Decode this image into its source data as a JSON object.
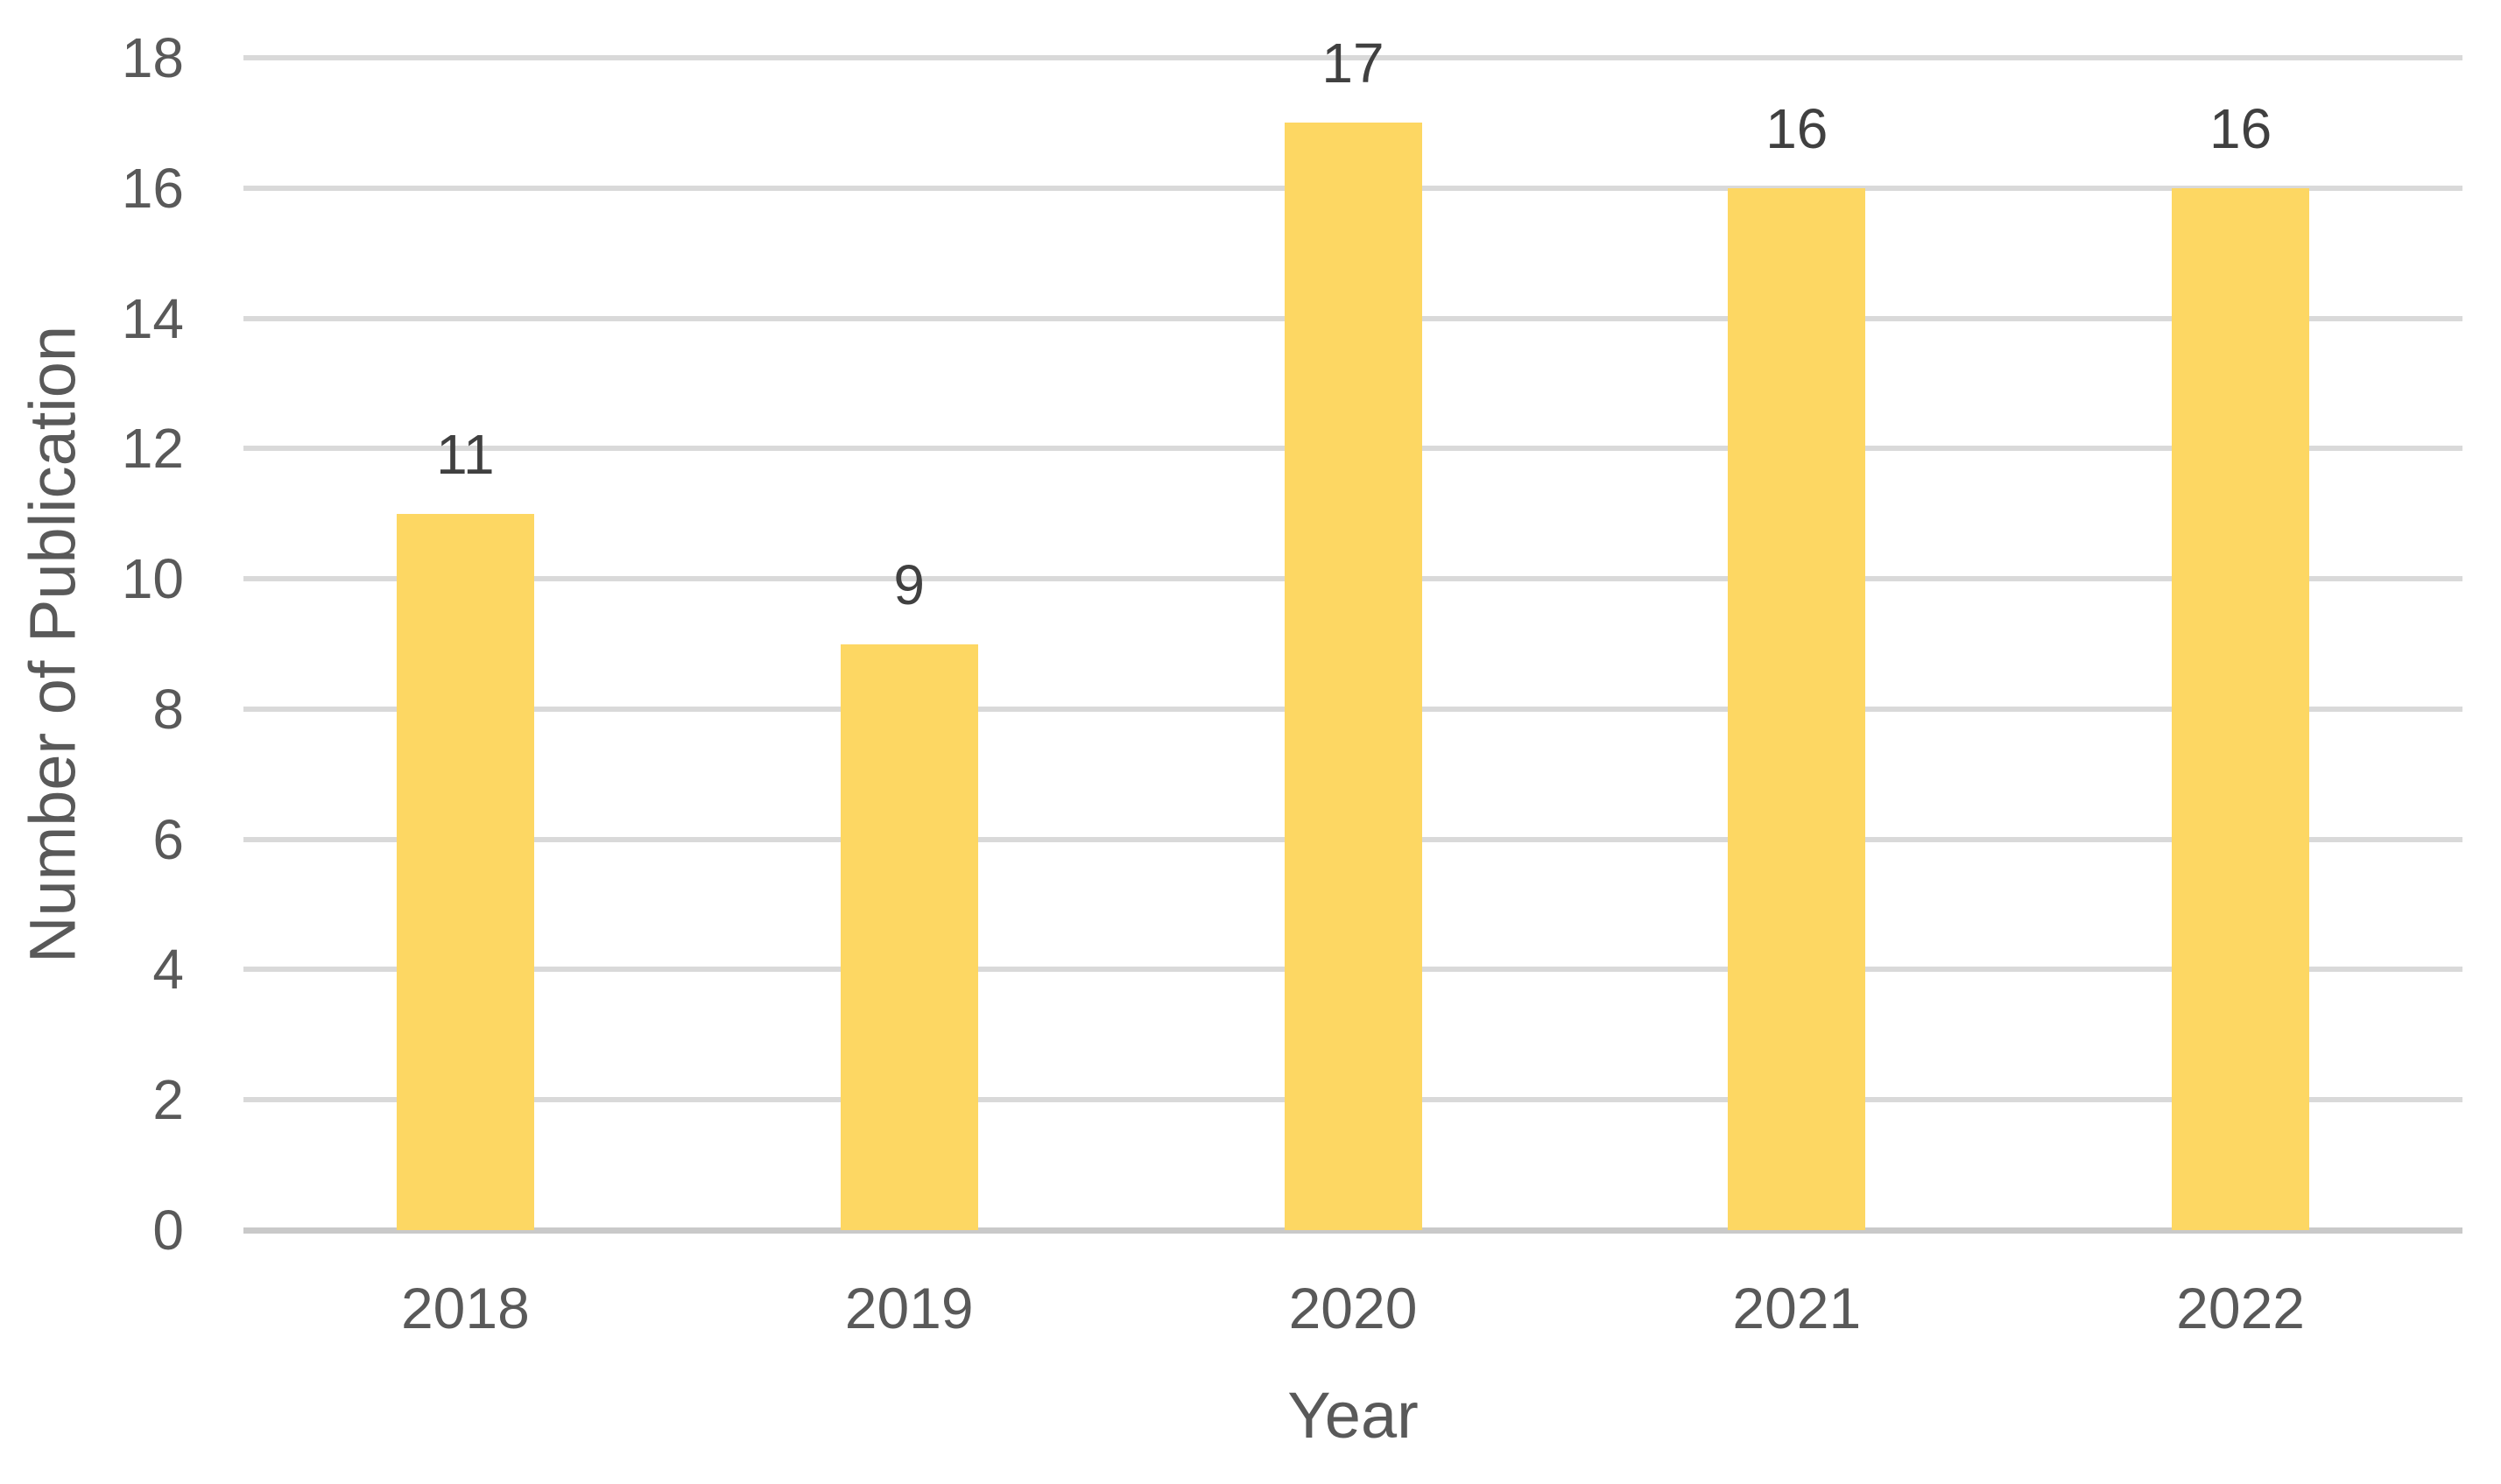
{
  "chart_data": {
    "type": "bar",
    "categories": [
      "2018",
      "2019",
      "2020",
      "2021",
      "2022"
    ],
    "values": [
      11,
      9,
      17,
      16,
      16
    ],
    "data_labels": [
      "11",
      "9",
      "17",
      "16",
      "16"
    ],
    "title": "",
    "xlabel": "Year",
    "ylabel": "Number of Publication",
    "ylim": [
      0,
      18
    ],
    "yticks": [
      0,
      2,
      4,
      6,
      8,
      10,
      12,
      14,
      16,
      18
    ],
    "grid": true,
    "legend": false,
    "colors": {
      "bar": "#FDD763",
      "gridline": "#D9D9D9",
      "axis_line": "#C9C9C9",
      "tick_label": "#595959",
      "axis_title": "#595959",
      "data_label": "#404040",
      "background": "#FFFFFF"
    }
  }
}
